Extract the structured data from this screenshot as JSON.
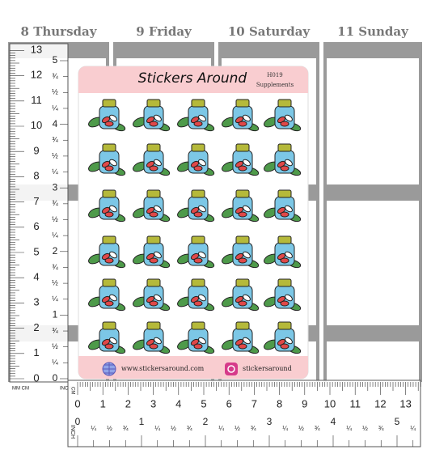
{
  "planner": {
    "days": [
      "8 Thursday",
      "9 Friday",
      "10 Saturday",
      "11 Sunday"
    ]
  },
  "sheet": {
    "title": "Stickers Around",
    "code": "H019",
    "name": "Supplements",
    "website": "www.stickersaround.com",
    "instagram": "stickersaround"
  },
  "left_ruler": {
    "unit_label": "MM CM",
    "inch_label": "INCH",
    "cm_labels": [
      13,
      12,
      11,
      10,
      9,
      8,
      7,
      6,
      5,
      4,
      3,
      2,
      1,
      0
    ],
    "inch_labels": [
      5,
      "¾",
      "½",
      "¼",
      4,
      "¾",
      "½",
      "¼",
      3,
      "¾",
      "½",
      "¼",
      2,
      "¾",
      "½",
      "¼",
      1,
      "¾",
      "½",
      "¼",
      0
    ]
  },
  "bottom_ruler": {
    "cm_unit": "CM",
    "inch_unit": "INCH",
    "cm_labels": [
      0,
      1,
      2,
      3,
      4,
      5,
      6,
      7,
      8,
      9,
      10,
      11,
      12,
      13
    ],
    "inch_labels": [
      0,
      "¼",
      "½",
      "¾",
      1,
      "¼",
      "½",
      "¾",
      2,
      "¼",
      "½",
      "¾",
      3,
      "¼",
      "½",
      "¾",
      4,
      "¼",
      "½",
      "¾",
      5,
      "¼"
    ]
  }
}
